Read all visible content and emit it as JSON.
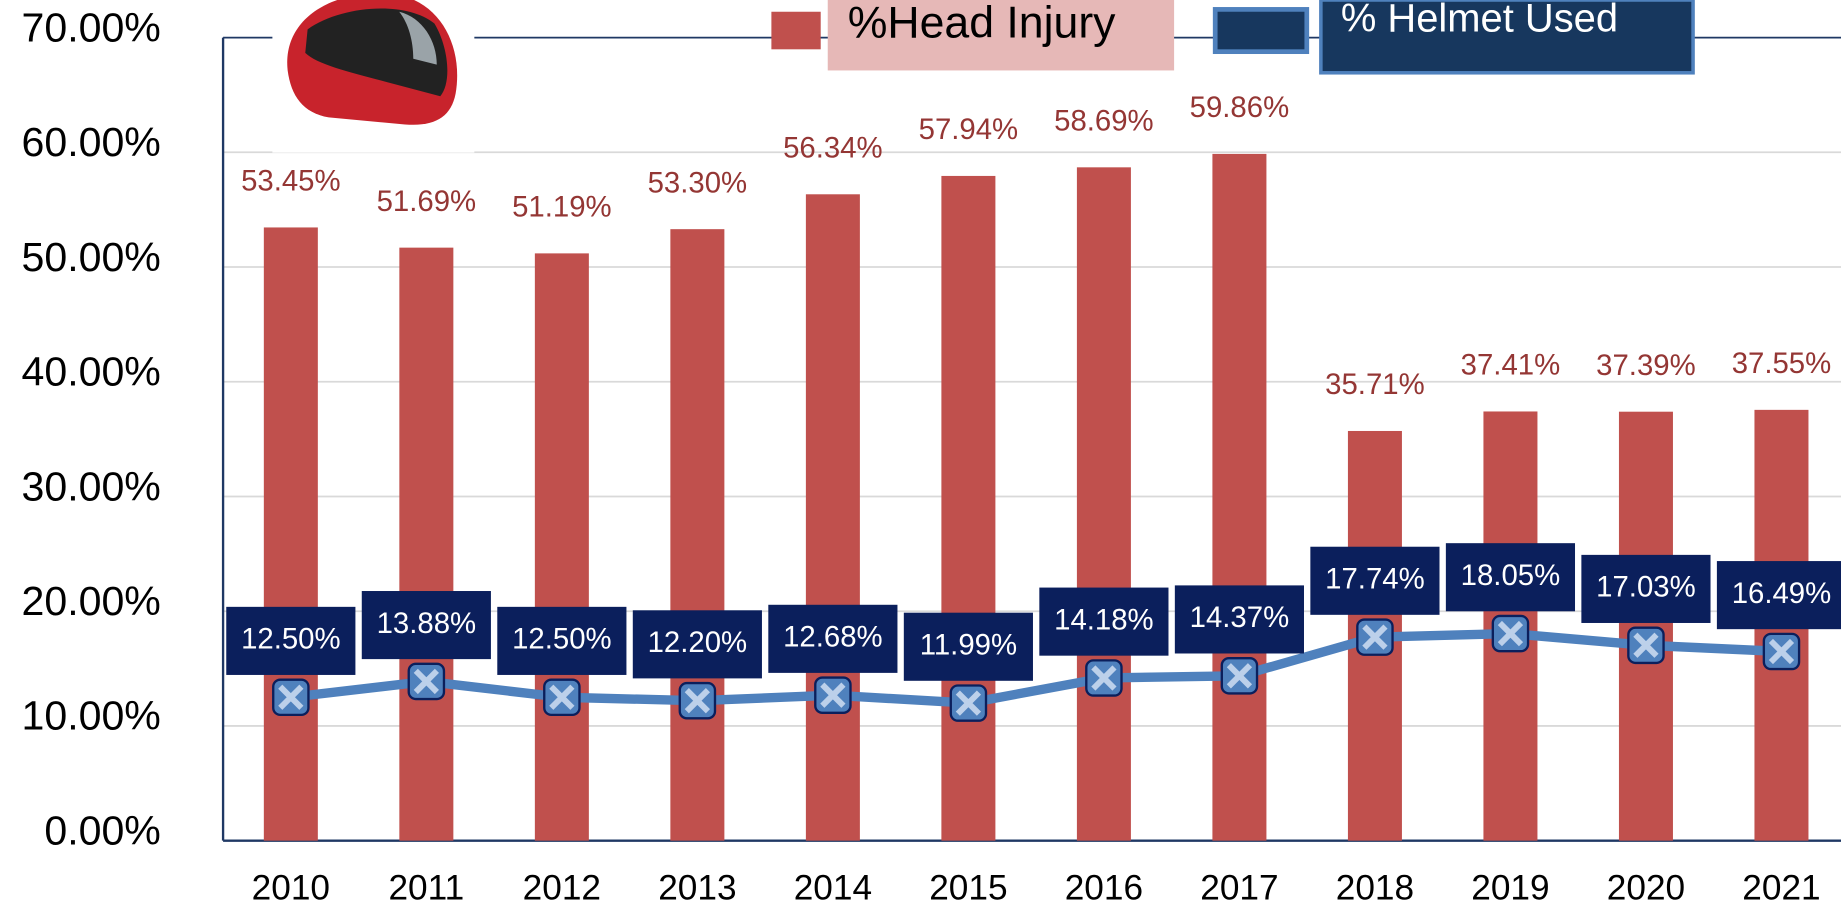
{
  "chart_data": {
    "type": "bar",
    "categories": [
      "2010",
      "2011",
      "2012",
      "2013",
      "2014",
      "2015",
      "2016",
      "2017",
      "2018",
      "2019",
      "2020",
      "2021"
    ],
    "series": [
      {
        "name": "%Head Injury",
        "color": "#c0504d",
        "values": [
          53.45,
          51.69,
          51.19,
          53.3,
          56.34,
          57.94,
          58.69,
          59.86,
          35.71,
          37.41,
          37.39,
          37.55
        ],
        "value_labels": [
          "53.45%",
          "51.69%",
          "51.19%",
          "53.30%",
          "56.34%",
          "57.94%",
          "58.69%",
          "59.86%",
          "35.71%",
          "37.41%",
          "37.39%",
          "37.55%"
        ]
      },
      {
        "name": "% Helmet Used",
        "type": "line",
        "color": "#4f81bd",
        "values": [
          12.5,
          13.88,
          12.5,
          12.2,
          12.68,
          11.99,
          14.18,
          14.37,
          17.74,
          18.05,
          17.03,
          16.49
        ],
        "value_labels": [
          "12.50%",
          "13.88%",
          "12.50%",
          "12.20%",
          "12.68%",
          "11.99%",
          "14.18%",
          "14.37%",
          "17.74%",
          "18.05%",
          "17.03%",
          "16.49%"
        ]
      }
    ],
    "ylim": [
      0,
      70
    ],
    "yticks": [
      {
        "value": 0,
        "label": "0.00%"
      },
      {
        "value": 10,
        "label": "10.00%"
      },
      {
        "value": 20,
        "label": "20.00%"
      },
      {
        "value": 30,
        "label": "30.00%"
      },
      {
        "value": 40,
        "label": "40.00%"
      },
      {
        "value": 50,
        "label": "50.00%"
      },
      {
        "value": 60,
        "label": "60.00%"
      },
      {
        "value": 70,
        "label": "70.00%"
      }
    ],
    "grid": true
  }
}
